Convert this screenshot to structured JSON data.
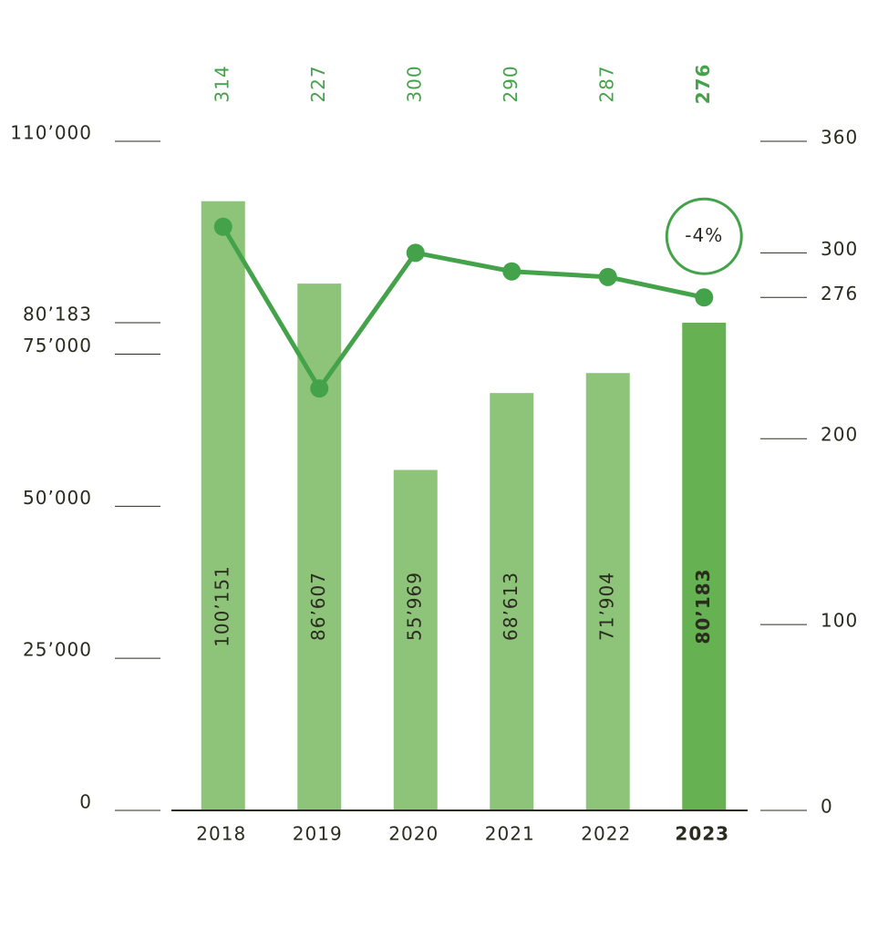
{
  "chart_data": {
    "type": "bar-line",
    "categories": [
      "2018",
      "2019",
      "2020",
      "2021",
      "2022",
      "2023"
    ],
    "highlight": 5,
    "series": [
      {
        "type": "bar",
        "color": "#8dc47a",
        "highlight_color": "#66b152",
        "values": [
          100151,
          86607,
          55969,
          68613,
          71904,
          80183
        ],
        "value_labels": [
          "100’151",
          "86’607",
          "55’969",
          "68’613",
          "71’904",
          "80’183"
        ]
      },
      {
        "type": "line",
        "axis": "y2",
        "color": "#44a34a",
        "values": [
          314,
          227,
          300,
          290,
          287,
          276
        ]
      }
    ],
    "ylim": [
      0,
      110000
    ],
    "yticks": [
      {
        "value": 0,
        "label": "0"
      },
      {
        "value": 25000,
        "label": "25’000"
      },
      {
        "value": 50000,
        "label": "50’000"
      },
      {
        "value": 75000,
        "label": "75’000"
      },
      {
        "value": 80183,
        "label": "80’183"
      },
      {
        "value": 110000,
        "label": "110’000"
      }
    ],
    "y2lim": [
      0,
      360
    ],
    "y2ticks": [
      0,
      100,
      200,
      276,
      300,
      360
    ],
    "annotation": {
      "text": "-4%"
    }
  }
}
